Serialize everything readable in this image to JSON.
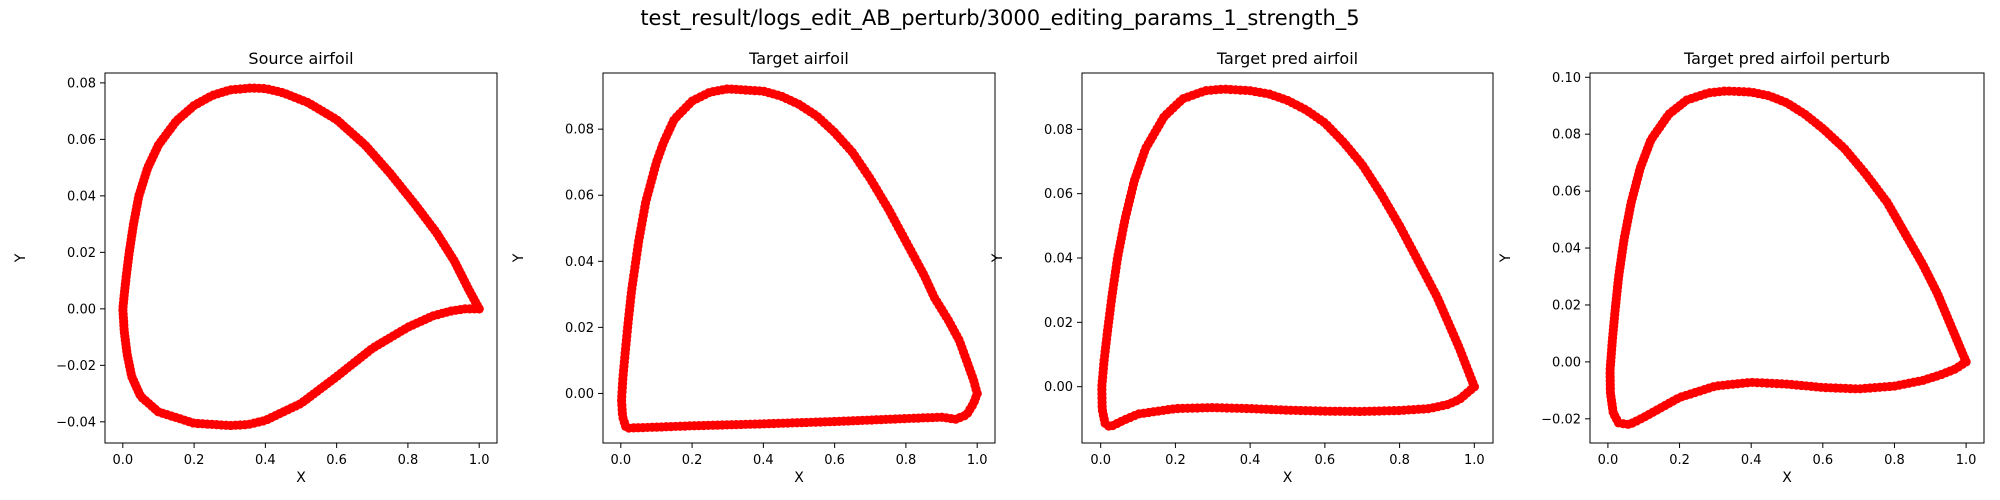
{
  "figure": {
    "suptitle": "test_result/logs_edit_AB_perturb/3000_editing_params_1_strength_5"
  },
  "chart_data": [
    {
      "type": "scatter",
      "title": "Source airfoil",
      "xlabel": "X",
      "ylabel": "Y",
      "xlim": [
        -0.05,
        1.05
      ],
      "ylim": [
        -0.0475,
        0.0835
      ],
      "xticks": [
        "0.0",
        "0.2",
        "0.4",
        "0.6",
        "0.8",
        "1.0"
      ],
      "yticks": [
        "−0.04",
        "−0.02",
        "0.00",
        "0.02",
        "0.04",
        "0.06",
        "0.08"
      ],
      "grid": false,
      "color": "#ff0000",
      "upper_curve": [
        [
          1.0,
          0.0
        ],
        [
          0.97,
          0.007
        ],
        [
          0.93,
          0.017
        ],
        [
          0.88,
          0.027
        ],
        [
          0.82,
          0.037
        ],
        [
          0.75,
          0.048
        ],
        [
          0.68,
          0.058
        ],
        [
          0.6,
          0.067
        ],
        [
          0.52,
          0.073
        ],
        [
          0.45,
          0.0765
        ],
        [
          0.4,
          0.078
        ],
        [
          0.36,
          0.0782
        ],
        [
          0.3,
          0.0775
        ],
        [
          0.25,
          0.0755
        ],
        [
          0.2,
          0.072
        ],
        [
          0.15,
          0.0665
        ],
        [
          0.1,
          0.058
        ],
        [
          0.07,
          0.05
        ],
        [
          0.045,
          0.04
        ],
        [
          0.03,
          0.03
        ],
        [
          0.018,
          0.02
        ],
        [
          0.01,
          0.012
        ],
        [
          0.004,
          0.005
        ],
        [
          0.0,
          0.0
        ]
      ],
      "lower_curve": [
        [
          0.0,
          0.0
        ],
        [
          0.004,
          -0.008
        ],
        [
          0.012,
          -0.016
        ],
        [
          0.025,
          -0.024
        ],
        [
          0.05,
          -0.031
        ],
        [
          0.1,
          -0.0365
        ],
        [
          0.2,
          -0.0405
        ],
        [
          0.3,
          -0.0413
        ],
        [
          0.35,
          -0.041
        ],
        [
          0.4,
          -0.0395
        ],
        [
          0.5,
          -0.0335
        ],
        [
          0.6,
          -0.024
        ],
        [
          0.7,
          -0.014
        ],
        [
          0.8,
          -0.0065
        ],
        [
          0.87,
          -0.0025
        ],
        [
          0.92,
          -0.0008
        ],
        [
          0.96,
          0.0
        ],
        [
          1.0,
          0.0
        ]
      ]
    },
    {
      "type": "scatter",
      "title": "Target airfoil",
      "xlabel": "X",
      "ylabel": "Y",
      "xlim": [
        -0.05,
        1.05
      ],
      "ylim": [
        -0.015,
        0.097
      ],
      "xticks": [
        "0.0",
        "0.2",
        "0.4",
        "0.6",
        "0.8",
        "1.0"
      ],
      "yticks": [
        "0.00",
        "0.02",
        "0.04",
        "0.06",
        "0.08"
      ],
      "grid": false,
      "color": "#ff0000",
      "upper_curve": [
        [
          1.0,
          0.0
        ],
        [
          0.99,
          0.004
        ],
        [
          0.97,
          0.01
        ],
        [
          0.95,
          0.016
        ],
        [
          0.92,
          0.022
        ],
        [
          0.88,
          0.029
        ],
        [
          0.85,
          0.036
        ],
        [
          0.8,
          0.046
        ],
        [
          0.75,
          0.056
        ],
        [
          0.7,
          0.065
        ],
        [
          0.65,
          0.073
        ],
        [
          0.6,
          0.079
        ],
        [
          0.55,
          0.084
        ],
        [
          0.5,
          0.0875
        ],
        [
          0.45,
          0.09
        ],
        [
          0.4,
          0.0915
        ],
        [
          0.3,
          0.0922
        ],
        [
          0.25,
          0.0912
        ],
        [
          0.2,
          0.0885
        ],
        [
          0.15,
          0.083
        ],
        [
          0.12,
          0.076
        ],
        [
          0.1,
          0.07
        ],
        [
          0.07,
          0.058
        ],
        [
          0.05,
          0.046
        ],
        [
          0.03,
          0.031
        ],
        [
          0.02,
          0.021
        ],
        [
          0.012,
          0.012
        ],
        [
          0.006,
          0.005
        ],
        [
          0.002,
          -0.002
        ],
        [
          0.005,
          -0.007
        ],
        [
          0.015,
          -0.0105
        ]
      ],
      "lower_curve": [
        [
          0.015,
          -0.0105
        ],
        [
          0.1,
          -0.0102
        ],
        [
          0.2,
          -0.0098
        ],
        [
          0.4,
          -0.0092
        ],
        [
          0.6,
          -0.0085
        ],
        [
          0.8,
          -0.0076
        ],
        [
          0.9,
          -0.0072
        ],
        [
          0.94,
          -0.0078
        ],
        [
          0.97,
          -0.0065
        ],
        [
          0.99,
          -0.003
        ],
        [
          1.0,
          0.0
        ]
      ]
    },
    {
      "type": "scatter",
      "title": "Target pred airfoil",
      "xlabel": "X",
      "ylabel": "Y",
      "xlim": [
        -0.05,
        1.05
      ],
      "ylim": [
        -0.0175,
        0.0975
      ],
      "xticks": [
        "0.0",
        "0.2",
        "0.4",
        "0.6",
        "0.8",
        "1.0"
      ],
      "yticks": [
        "0.00",
        "0.02",
        "0.04",
        "0.06",
        "0.08"
      ],
      "grid": false,
      "color": "#ff0000",
      "upper_curve": [
        [
          1.0,
          0.0
        ],
        [
          0.98,
          0.006
        ],
        [
          0.96,
          0.012
        ],
        [
          0.93,
          0.02
        ],
        [
          0.9,
          0.028
        ],
        [
          0.85,
          0.039
        ],
        [
          0.8,
          0.05
        ],
        [
          0.75,
          0.06
        ],
        [
          0.7,
          0.069
        ],
        [
          0.65,
          0.076
        ],
        [
          0.6,
          0.082
        ],
        [
          0.55,
          0.086
        ],
        [
          0.5,
          0.089
        ],
        [
          0.45,
          0.091
        ],
        [
          0.4,
          0.092
        ],
        [
          0.33,
          0.0925
        ],
        [
          0.28,
          0.092
        ],
        [
          0.22,
          0.0895
        ],
        [
          0.17,
          0.084
        ],
        [
          0.12,
          0.074
        ],
        [
          0.09,
          0.064
        ],
        [
          0.065,
          0.052
        ],
        [
          0.045,
          0.04
        ],
        [
          0.03,
          0.028
        ],
        [
          0.018,
          0.017
        ],
        [
          0.009,
          0.008
        ],
        [
          0.003,
          0.0
        ],
        [
          0.004,
          -0.007
        ],
        [
          0.012,
          -0.0115
        ],
        [
          0.025,
          -0.0125
        ]
      ],
      "lower_curve": [
        [
          0.025,
          -0.0125
        ],
        [
          0.06,
          -0.0105
        ],
        [
          0.1,
          -0.0085
        ],
        [
          0.2,
          -0.0068
        ],
        [
          0.3,
          -0.0065
        ],
        [
          0.4,
          -0.0068
        ],
        [
          0.5,
          -0.0073
        ],
        [
          0.6,
          -0.0076
        ],
        [
          0.7,
          -0.0077
        ],
        [
          0.8,
          -0.0074
        ],
        [
          0.88,
          -0.0068
        ],
        [
          0.93,
          -0.0055
        ],
        [
          0.96,
          -0.004
        ],
        [
          0.98,
          -0.002
        ],
        [
          1.0,
          0.0
        ]
      ]
    },
    {
      "type": "scatter",
      "title": "Target pred airfoil perturb",
      "xlabel": "X",
      "ylabel": "Y",
      "xlim": [
        -0.05,
        1.05
      ],
      "ylim": [
        -0.0285,
        0.1015
      ],
      "xticks": [
        "0.0",
        "0.2",
        "0.4",
        "0.6",
        "0.8",
        "1.0"
      ],
      "yticks": [
        "−0.02",
        "0.00",
        "0.02",
        "0.04",
        "0.06",
        "0.08",
        "0.10"
      ],
      "grid": false,
      "color": "#ff0000",
      "upper_curve": [
        [
          1.0,
          0.0
        ],
        [
          0.98,
          0.006
        ],
        [
          0.95,
          0.015
        ],
        [
          0.92,
          0.024
        ],
        [
          0.88,
          0.034
        ],
        [
          0.83,
          0.045
        ],
        [
          0.78,
          0.056
        ],
        [
          0.72,
          0.066
        ],
        [
          0.66,
          0.075
        ],
        [
          0.6,
          0.082
        ],
        [
          0.55,
          0.087
        ],
        [
          0.5,
          0.091
        ],
        [
          0.45,
          0.0935
        ],
        [
          0.4,
          0.0948
        ],
        [
          0.33,
          0.0952
        ],
        [
          0.28,
          0.0945
        ],
        [
          0.22,
          0.092
        ],
        [
          0.17,
          0.087
        ],
        [
          0.12,
          0.078
        ],
        [
          0.09,
          0.068
        ],
        [
          0.065,
          0.056
        ],
        [
          0.045,
          0.043
        ],
        [
          0.03,
          0.03
        ],
        [
          0.02,
          0.018
        ],
        [
          0.012,
          0.007
        ],
        [
          0.006,
          -0.003
        ],
        [
          0.007,
          -0.011
        ],
        [
          0.015,
          -0.018
        ],
        [
          0.03,
          -0.0215
        ],
        [
          0.06,
          -0.022
        ]
      ],
      "lower_curve": [
        [
          0.06,
          -0.022
        ],
        [
          0.1,
          -0.0195
        ],
        [
          0.2,
          -0.0125
        ],
        [
          0.3,
          -0.0085
        ],
        [
          0.4,
          -0.0072
        ],
        [
          0.5,
          -0.0078
        ],
        [
          0.6,
          -0.009
        ],
        [
          0.7,
          -0.0095
        ],
        [
          0.8,
          -0.0085
        ],
        [
          0.88,
          -0.0065
        ],
        [
          0.93,
          -0.0045
        ],
        [
          0.97,
          -0.0025
        ],
        [
          1.0,
          0.0
        ]
      ]
    }
  ]
}
